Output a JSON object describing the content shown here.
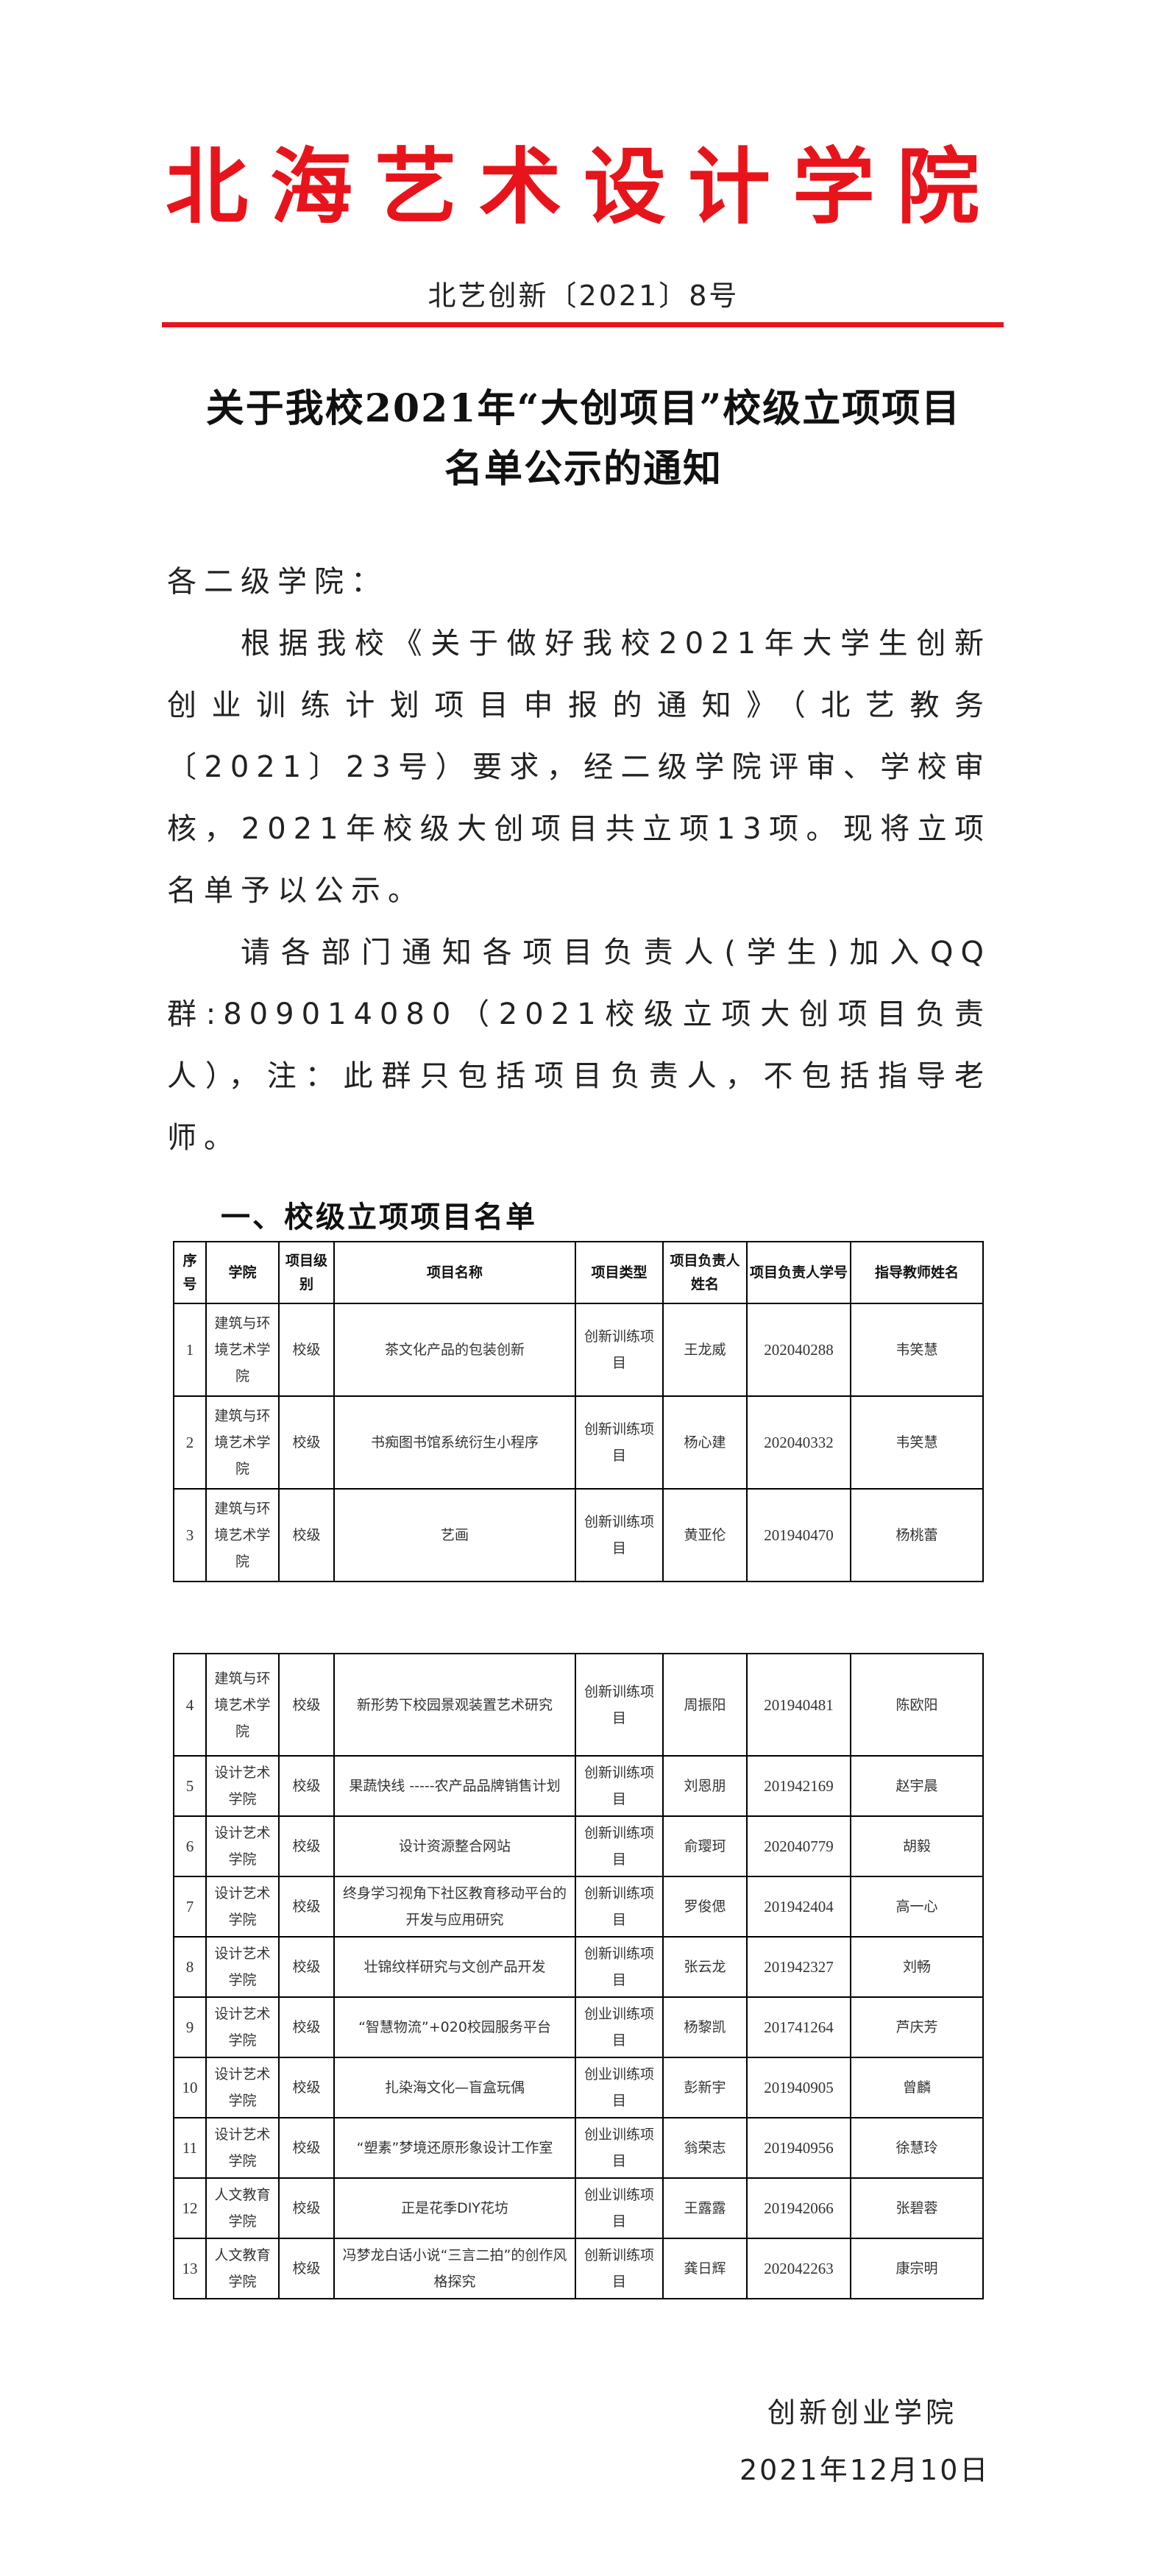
{
  "header": {
    "school_name": "北海艺术设计学院",
    "doc_number": "北艺创新〔2021〕8号",
    "accent_color": "#e8141b"
  },
  "title": {
    "line1": "关于我校2021年“大创项目”校级立项项目",
    "line2": "名单公示的通知"
  },
  "body": {
    "salutation": "各二级学院：",
    "paragraph1": "根据我校《关于做好我校2021年大学生创新创业训练计划项目申报的通知》（北艺教务〔2021〕23号）要求，经二级学院评审、学校审核，2021年校级大创项目共立项13项。现将立项名单予以公示。",
    "paragraph2": "请各部门通知各项目负责人(学生)加入QQ群:809014080（2021校级立项大创项目负责人），注：此群只包括项目负责人，不包括指导老师。"
  },
  "section_heading": "一、校级立项项目名单",
  "table": {
    "columns": [
      "序号",
      "学院",
      "项目级别",
      "项目名称",
      "项目类型",
      "项目负责人姓名",
      "项目负责人学号",
      "指导教师姓名"
    ],
    "rows": [
      [
        "1",
        "建筑与环境艺术学院",
        "校级",
        "茶文化产品的包装创新",
        "创新训练项目",
        "王龙威",
        "202040288",
        "韦笑慧"
      ],
      [
        "2",
        "建筑与环境艺术学院",
        "校级",
        "书痴图书馆系统衍生小程序",
        "创新训练项目",
        "杨心建",
        "202040332",
        "韦笑慧"
      ],
      [
        "3",
        "建筑与环境艺术学院",
        "校级",
        "艺画",
        "创新训练项目",
        "黄亚伦",
        "201940470",
        "杨桃蕾"
      ],
      [
        "4",
        "建筑与环境艺术学院",
        "校级",
        "新形势下校园景观装置艺术研究",
        "创新训练项目",
        "周振阳",
        "201940481",
        "陈欧阳"
      ],
      [
        "5",
        "设计艺术学院",
        "校级",
        "果蔬快线 -----农产品品牌销售计划",
        "创新训练项目",
        "刘恩朋",
        "201942169",
        "赵宇晨"
      ],
      [
        "6",
        "设计艺术学院",
        "校级",
        "设计资源整合网站",
        "创新训练项目",
        "俞璎珂",
        "202040779",
        "胡毅"
      ],
      [
        "7",
        "设计艺术学院",
        "校级",
        "终身学习视角下社区教育移动平台的开发与应用研究",
        "创新训练项目",
        "罗俊偲",
        "201942404",
        "高一心"
      ],
      [
        "8",
        "设计艺术学院",
        "校级",
        "壮锦纹样研究与文创产品开发",
        "创新训练项目",
        "张云龙",
        "201942327",
        "刘畅"
      ],
      [
        "9",
        "设计艺术学院",
        "校级",
        "“智慧物流”+020校园服务平台",
        "创业训练项目",
        "杨黎凯",
        "201741264",
        "芦庆芳"
      ],
      [
        "10",
        "设计艺术学院",
        "校级",
        "扎染海文化—盲盒玩偶",
        "创业训练项目",
        "彭新宇",
        "201940905",
        "曾麟"
      ],
      [
        "11",
        "设计艺术学院",
        "校级",
        "“塑素”梦境还原形象设计工作室",
        "创业训练项目",
        "翁荣志",
        "201940956",
        "徐慧玲"
      ],
      [
        "12",
        "人文教育学院",
        "校级",
        "正是花季DIY花坊",
        "创业训练项目",
        "王露露",
        "201942066",
        "张碧蓉"
      ],
      [
        "13",
        "人文教育学院",
        "校级",
        "冯梦龙白话小说“三言二拍”的创作风格探究",
        "创新训练项目",
        "龚日辉",
        "202042263",
        "康宗明"
      ]
    ]
  },
  "footer": {
    "organization": "创新创业学院",
    "date": "2021年12月10日"
  }
}
